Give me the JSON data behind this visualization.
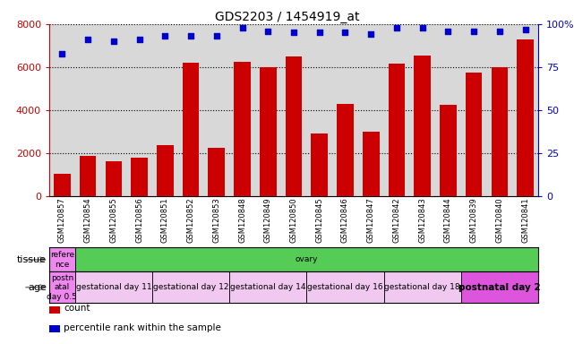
{
  "title": "GDS2203 / 1454919_at",
  "samples": [
    "GSM120857",
    "GSM120854",
    "GSM120855",
    "GSM120856",
    "GSM120851",
    "GSM120852",
    "GSM120853",
    "GSM120848",
    "GSM120849",
    "GSM120850",
    "GSM120845",
    "GSM120846",
    "GSM120847",
    "GSM120842",
    "GSM120843",
    "GSM120844",
    "GSM120839",
    "GSM120840",
    "GSM120841"
  ],
  "counts": [
    1050,
    1850,
    1600,
    1800,
    2350,
    6200,
    2250,
    6250,
    6000,
    6500,
    2900,
    4300,
    3000,
    6150,
    6550,
    4250,
    5750,
    6000,
    7300
  ],
  "percentiles": [
    83,
    91,
    90,
    91,
    93,
    93,
    93,
    98,
    96,
    95,
    95,
    95,
    94,
    98,
    98,
    96,
    96,
    96,
    97
  ],
  "bar_color": "#cc0000",
  "dot_color": "#0000cc",
  "ylim_left": [
    0,
    8000
  ],
  "ylim_right": [
    0,
    100
  ],
  "yticks_left": [
    0,
    2000,
    4000,
    6000,
    8000
  ],
  "yticks_right": [
    0,
    25,
    50,
    75,
    100
  ],
  "yticklabels_right": [
    "0",
    "25",
    "50",
    "75",
    "100%"
  ],
  "bg_color": "#d8d8d8",
  "tissue_groups": [
    {
      "text": "refere\nnce",
      "color": "#ee88ee",
      "start": 0,
      "end": 1
    },
    {
      "text": "ovary",
      "color": "#55cc55",
      "start": 1,
      "end": 19
    }
  ],
  "age_groups": [
    {
      "text": "postn\natal\nday 0.5",
      "color": "#ee88ee",
      "start": 0,
      "end": 1
    },
    {
      "text": "gestational day 11",
      "color": "#f0c8f0",
      "start": 1,
      "end": 4
    },
    {
      "text": "gestational day 12",
      "color": "#f0c8f0",
      "start": 4,
      "end": 7
    },
    {
      "text": "gestational day 14",
      "color": "#f0c8f0",
      "start": 7,
      "end": 10
    },
    {
      "text": "gestational day 16",
      "color": "#f0c8f0",
      "start": 10,
      "end": 13
    },
    {
      "text": "gestational day 18",
      "color": "#f0c8f0",
      "start": 13,
      "end": 16
    },
    {
      "text": "postnatal day 2",
      "color": "#dd55dd",
      "start": 16,
      "end": 19
    }
  ],
  "legend_items": [
    {
      "label": "count",
      "color": "#cc0000"
    },
    {
      "label": "percentile rank within the sample",
      "color": "#0000cc"
    }
  ]
}
